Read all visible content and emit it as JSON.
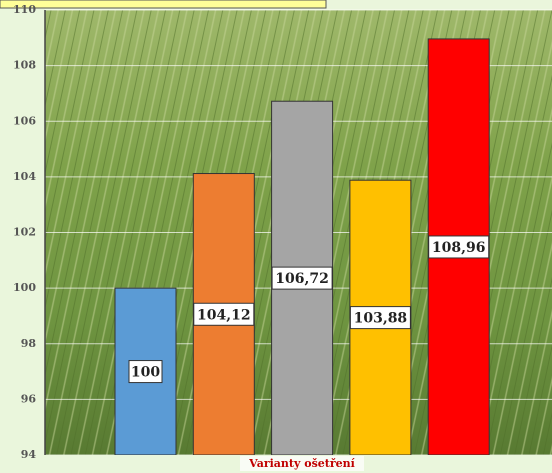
{
  "chart_data": {
    "type": "bar",
    "x_label": "Varianty ošetření",
    "values": [
      100,
      104.12,
      106.72,
      103.88,
      108.96
    ],
    "value_labels": [
      "100",
      "104,12",
      "106,72",
      "103,88",
      "108,96"
    ],
    "colors": [
      "#5b9bd5",
      "#ed7d31",
      "#a5a5a5",
      "#ffc000",
      "#ff0000"
    ],
    "ylim": [
      94,
      110
    ],
    "yticks": [
      94,
      96,
      98,
      100,
      102,
      104,
      106,
      108,
      110
    ],
    "grid": true
  }
}
